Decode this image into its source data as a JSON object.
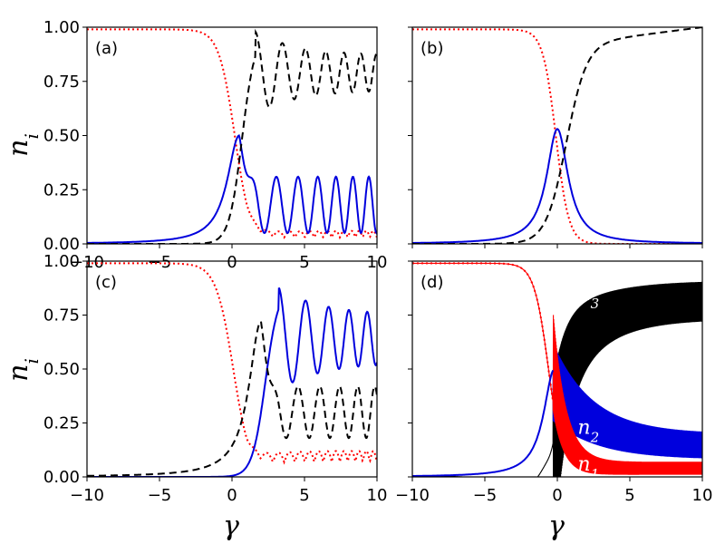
{
  "figure": {
    "ylabel": "n",
    "ylabel_sub": "i",
    "xlabel": "γ"
  },
  "colors": {
    "n1": "#ff0000",
    "n2": "#0000dd",
    "n3": "#000000"
  },
  "chart_data": [
    {
      "type": "line",
      "panel": "(a)",
      "xlim": [
        -10,
        10
      ],
      "ylim": [
        0,
        1
      ],
      "xticks": [
        "−10",
        "−5",
        "0",
        "5",
        "10"
      ],
      "yticks": [
        "0.00",
        "0.25",
        "0.50",
        "0.75",
        "1.00"
      ],
      "grid": false,
      "series": [
        {
          "key": "n1",
          "style": "dotted",
          "shape": "decay_with_small_oscillation",
          "center": 0.2,
          "width": 0.55,
          "start": 0.99,
          "tail_mean": 0.03,
          "tail_amp": 0.03,
          "peak_x": 0.5,
          "peak_y": 0.5
        },
        {
          "key": "n2",
          "style": "solid",
          "shape": "peak_then_oscillation",
          "peak_x": 0.5,
          "peak_y": 0.5,
          "tail_mean": 0.18,
          "tail_amp": 0.13
        },
        {
          "key": "n3",
          "style": "dashed",
          "shape": "rise_then_oscillation",
          "peak_x": 1.6,
          "peak_y": 0.98,
          "tail_mean": 0.79,
          "tail_amp": 0.08
        }
      ]
    },
    {
      "type": "line",
      "panel": "(b)",
      "xlim": [
        -10,
        10
      ],
      "ylim": [
        0,
        1
      ],
      "xticks": [],
      "yticks": [],
      "grid": false,
      "series": [
        {
          "key": "n1",
          "style": "dotted",
          "shape": "sigmoid_decay",
          "center": -0.1,
          "width": 0.45
        },
        {
          "key": "n2",
          "style": "solid",
          "shape": "lorentzian_peak",
          "peak_x": 0.0,
          "peak_y": 0.53
        },
        {
          "key": "n3",
          "style": "dashed",
          "shape": "sigmoid_rise",
          "center": 0.6,
          "end": 1.0
        }
      ]
    },
    {
      "type": "line",
      "panel": "(c)",
      "xlim": [
        -10,
        10
      ],
      "ylim": [
        0,
        1
      ],
      "xticks": [
        "−10",
        "−5",
        "0",
        "5",
        "10"
      ],
      "yticks": [
        "0.00",
        "0.25",
        "0.50",
        "0.75",
        "1.00"
      ],
      "grid": false,
      "series": [
        {
          "key": "n1",
          "style": "dotted",
          "shape": "decay_with_small_oscillation",
          "center": 0.1,
          "width": 0.6,
          "tail_mean": 0.07,
          "tail_amp": 0.05
        },
        {
          "key": "n2",
          "style": "solid",
          "shape": "rise_then_oscillation",
          "peak_x": 3.2,
          "peak_y": 0.88,
          "tail_mean": 0.64,
          "tail_amp": 0.11
        },
        {
          "key": "n3",
          "style": "dashed",
          "shape": "peak_then_oscillation",
          "peak_x": 2.0,
          "peak_y": 0.72,
          "tail_mean": 0.3,
          "tail_amp": 0.12
        }
      ]
    },
    {
      "type": "area",
      "panel": "(d)",
      "xlim": [
        -10,
        10
      ],
      "ylim": [
        0,
        1
      ],
      "xticks": [
        "−10",
        "−5",
        "0",
        "5",
        "10"
      ],
      "yticks": [],
      "grid": false,
      "series": [
        {
          "key": "n1",
          "label": "n",
          "sub": "1",
          "style": "dotted",
          "shape": "fast_oscillation_band",
          "tail_mean": 0.04,
          "tail_amp": 0.03
        },
        {
          "key": "n2",
          "label": "n",
          "sub": "2",
          "style": "solid",
          "shape": "fast_oscillation_band",
          "tail_mean": 0.14,
          "tail_amp": 0.06
        },
        {
          "key": "n3",
          "label": "n",
          "sub": "3",
          "style": "dashed",
          "shape": "fast_oscillation_band",
          "tail_mean": 0.87,
          "tail_amp": 0.07
        }
      ]
    }
  ]
}
